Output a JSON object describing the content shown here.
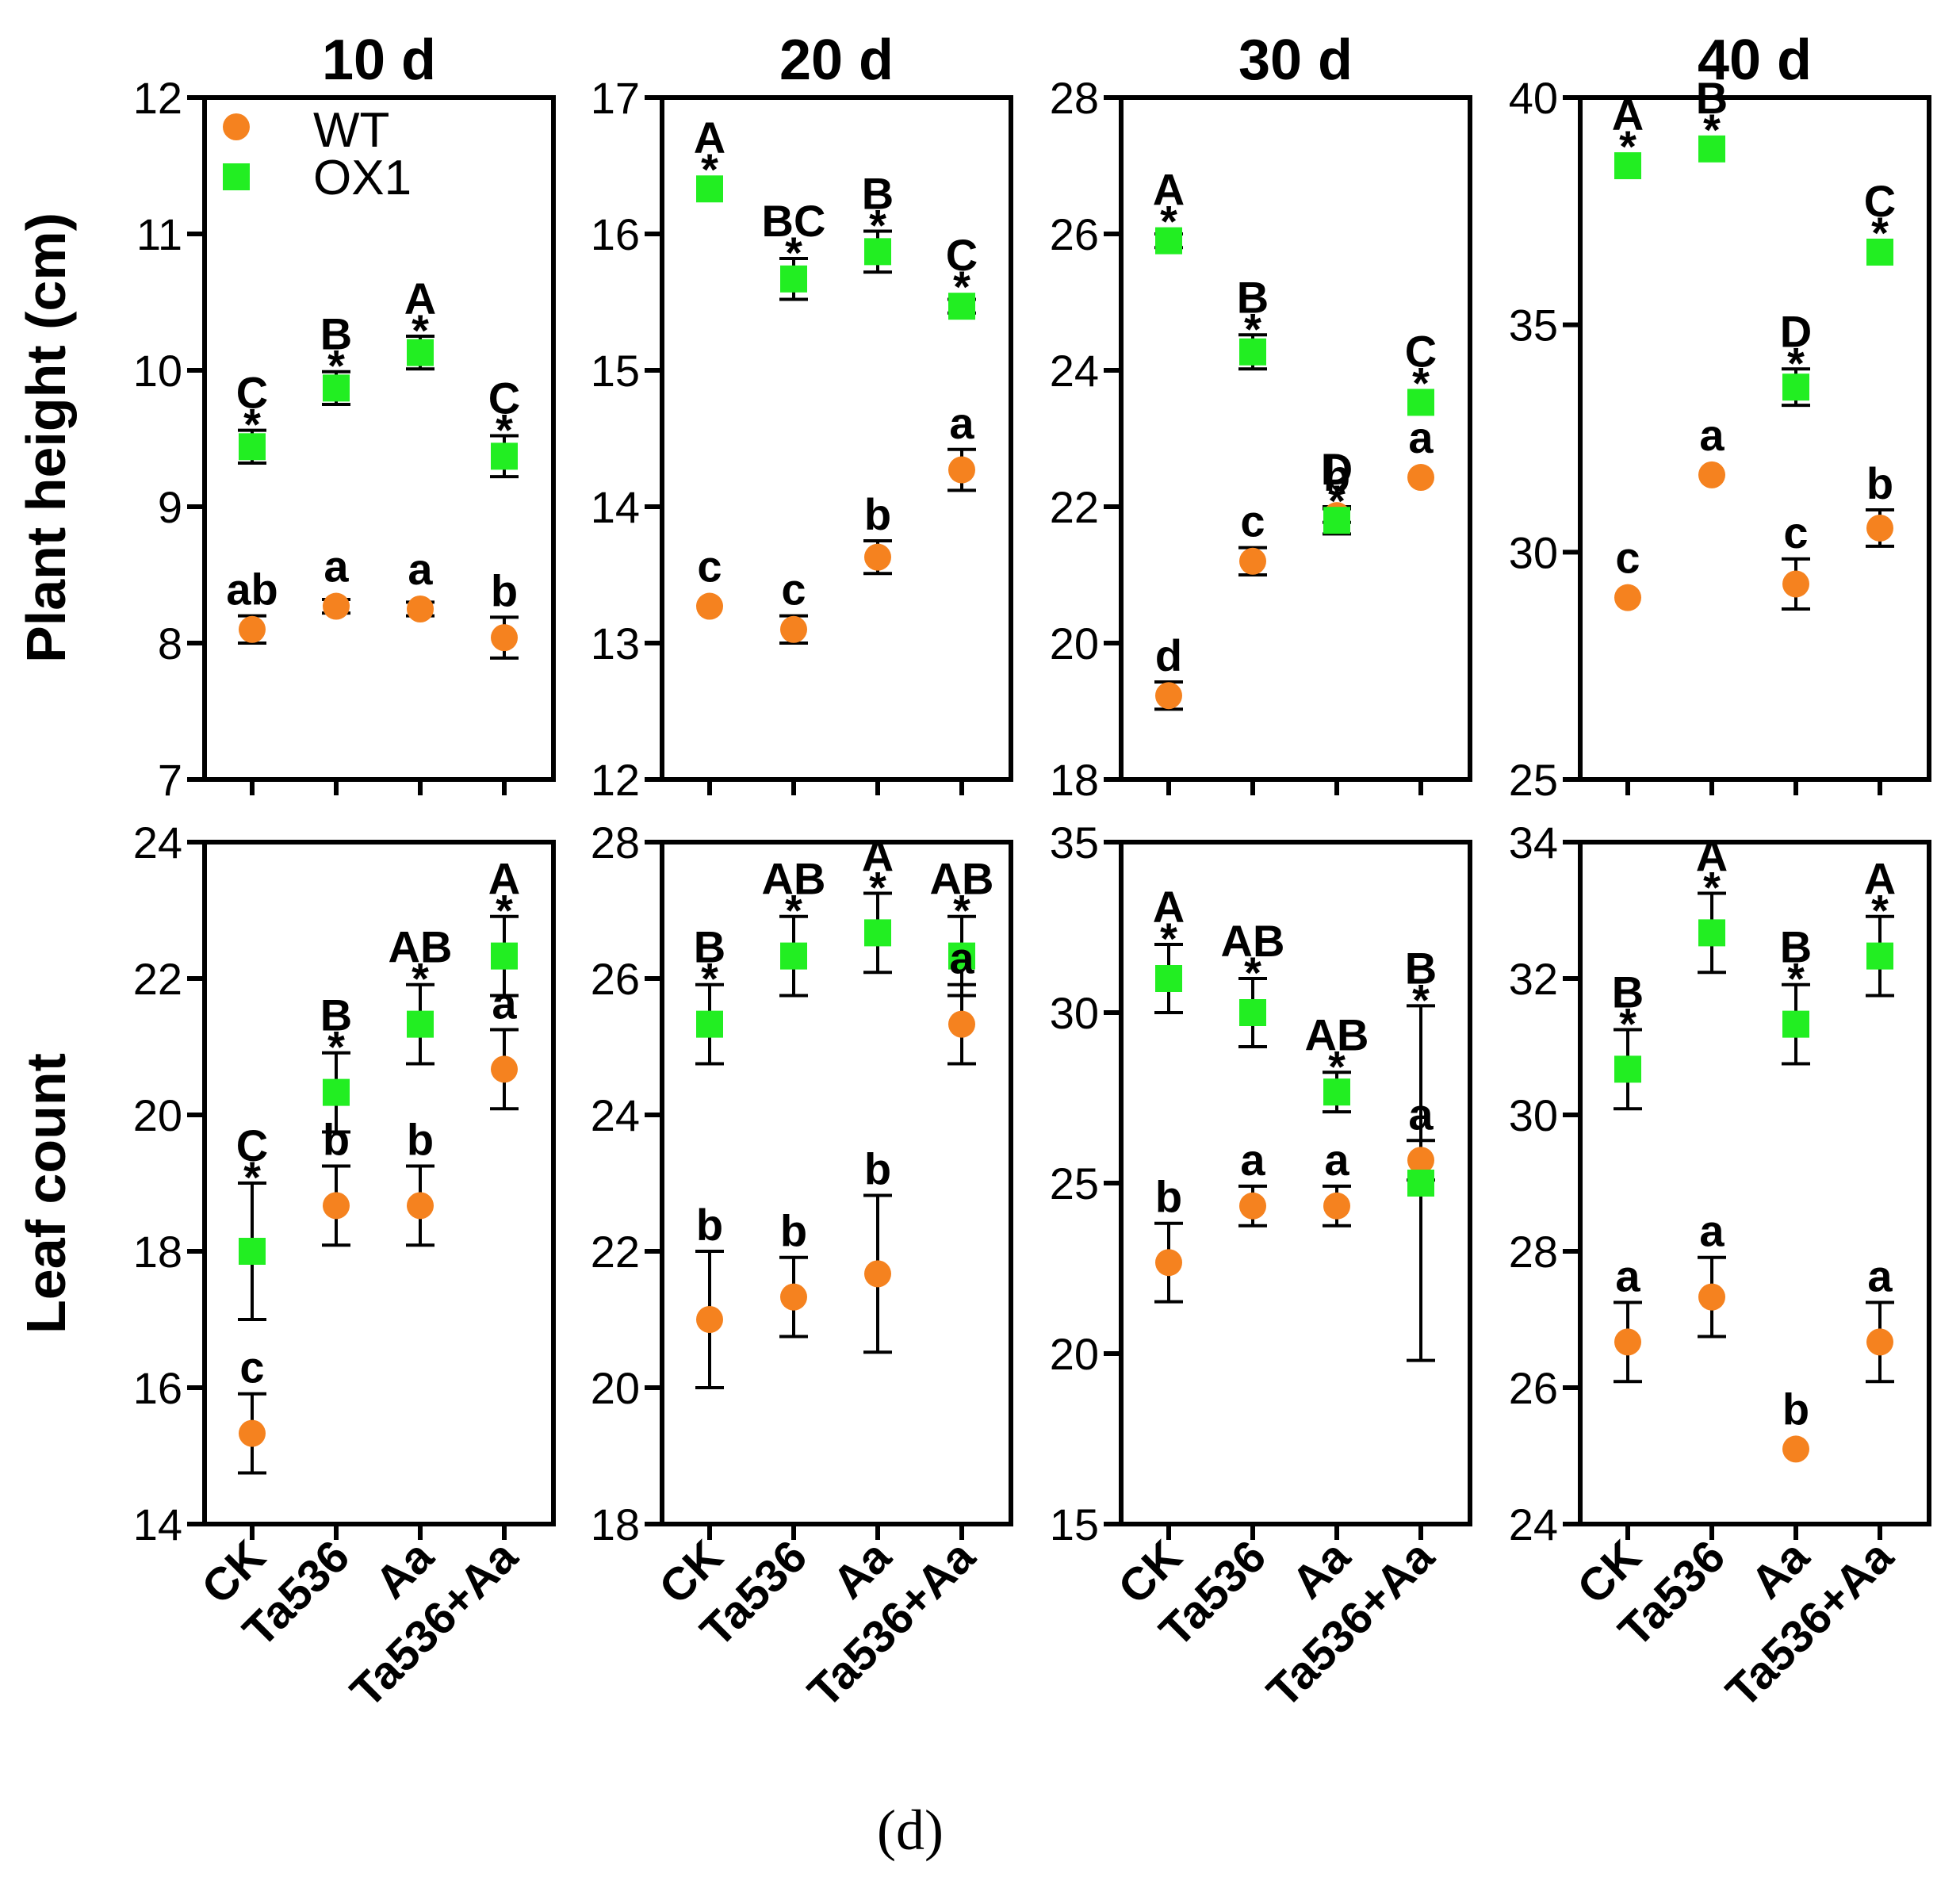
{
  "figure": {
    "caption": "(d)",
    "colors": {
      "wt": "#f5821f",
      "ox1": "#22ee22",
      "axis": "#000000",
      "text": "#000000"
    },
    "legend": [
      {
        "name": "WT",
        "marker": "circle",
        "color": "#f5821f"
      },
      {
        "name": "OX1",
        "marker": "square",
        "color": "#22ee22"
      }
    ],
    "row_ylabels": [
      "Plant height (cm)",
      "Leaf count"
    ],
    "x_categories": [
      "CK",
      "Ta536",
      "Aa",
      "Ta536+Aa"
    ]
  },
  "chart_data": [
    {
      "type": "scatter",
      "title": "10 d",
      "ylabel": "Plant height (cm)",
      "xlabel": "",
      "categories": [
        "CK",
        "Ta536",
        "Aa",
        "Ta536+Aa"
      ],
      "ylim": [
        7,
        12
      ],
      "yticks": [
        7,
        8,
        9,
        10,
        11,
        12
      ],
      "show_xticklabels": false,
      "series": [
        {
          "name": "WT",
          "values": [
            8.1,
            8.27,
            8.25,
            8.04
          ],
          "err": [
            0.1,
            0.05,
            0.05,
            0.15
          ],
          "letters": [
            "ab",
            "a",
            "a",
            "b"
          ]
        },
        {
          "name": "OX1",
          "values": [
            9.44,
            9.87,
            10.13,
            9.37
          ],
          "err": [
            0.12,
            0.12,
            0.12,
            0.15
          ],
          "letters": [
            "C",
            "B",
            "A",
            "C"
          ],
          "stars": [
            "*",
            "*",
            "*",
            "*"
          ]
        }
      ]
    },
    {
      "type": "scatter",
      "title": "20 d",
      "ylabel": "",
      "xlabel": "",
      "categories": [
        "CK",
        "Ta536",
        "Aa",
        "Ta536+Aa"
      ],
      "ylim": [
        12,
        17
      ],
      "yticks": [
        12,
        13,
        14,
        15,
        16,
        17
      ],
      "show_xticklabels": false,
      "series": [
        {
          "name": "WT",
          "values": [
            13.27,
            13.1,
            13.63,
            14.27
          ],
          "err": [
            0.0,
            0.1,
            0.12,
            0.15
          ],
          "letters": [
            "c",
            "c",
            "b",
            "a"
          ]
        },
        {
          "name": "OX1",
          "values": [
            16.33,
            15.67,
            15.87,
            15.47
          ],
          "err": [
            0.0,
            0.15,
            0.15,
            0.05
          ],
          "letters": [
            "A",
            "BC",
            "B",
            "C"
          ],
          "stars": [
            "*",
            "*",
            "*",
            "*"
          ]
        }
      ]
    },
    {
      "type": "scatter",
      "title": "30 d",
      "ylabel": "",
      "xlabel": "",
      "categories": [
        "CK",
        "Ta536",
        "Aa",
        "Ta536+Aa"
      ],
      "ylim": [
        18,
        28
      ],
      "yticks": [
        18,
        20,
        22,
        24,
        26,
        28
      ],
      "show_xticklabels": false,
      "series": [
        {
          "name": "WT",
          "values": [
            19.23,
            21.2,
            21.87,
            22.43
          ],
          "err": [
            0.2,
            0.2,
            0.1,
            0.0
          ],
          "letters": [
            "d",
            "c",
            "b",
            "a"
          ]
        },
        {
          "name": "OX1",
          "values": [
            25.9,
            24.27,
            21.8,
            23.53
          ],
          "err": [
            0.1,
            0.25,
            0.2,
            0.0
          ],
          "letters": [
            "A",
            "B",
            "D",
            "C"
          ],
          "stars": [
            "*",
            "*",
            "*",
            "*"
          ]
        }
      ]
    },
    {
      "type": "scatter",
      "title": "40 d",
      "ylabel": "",
      "xlabel": "",
      "categories": [
        "CK",
        "Ta536",
        "Aa",
        "Ta536+Aa"
      ],
      "ylim": [
        25,
        40
      ],
      "yticks": [
        25,
        30,
        35,
        40
      ],
      "show_xticklabels": false,
      "series": [
        {
          "name": "WT",
          "values": [
            29.0,
            31.7,
            29.3,
            30.53
          ],
          "err": [
            0.0,
            0.0,
            0.55,
            0.4
          ],
          "letters": [
            "c",
            "a",
            "c",
            "b"
          ]
        },
        {
          "name": "OX1",
          "values": [
            38.5,
            38.87,
            33.63,
            36.6
          ],
          "err": [
            0.0,
            0.0,
            0.4,
            0.0
          ],
          "letters": [
            "A",
            "B",
            "D",
            "C"
          ],
          "stars": [
            "*",
            "*",
            "*",
            "*"
          ]
        }
      ]
    },
    {
      "type": "scatter",
      "title": "",
      "ylabel": "Leaf count",
      "xlabel": "",
      "categories": [
        "CK",
        "Ta536",
        "Aa",
        "Ta536+Aa"
      ],
      "ylim": [
        14,
        24
      ],
      "yticks": [
        14,
        16,
        18,
        20,
        22,
        24
      ],
      "show_xticklabels": true,
      "series": [
        {
          "name": "WT",
          "values": [
            15.33,
            18.67,
            18.67,
            20.67
          ],
          "err": [
            0.58,
            0.58,
            0.58,
            0.58
          ],
          "letters": [
            "c",
            "b",
            "b",
            "a"
          ]
        },
        {
          "name": "OX1",
          "values": [
            18.0,
            20.33,
            21.33,
            22.33
          ],
          "err": [
            1.0,
            0.58,
            0.58,
            0.58
          ],
          "letters": [
            "C",
            "B",
            "AB",
            "A"
          ],
          "stars": [
            "*",
            "*",
            "*",
            "*"
          ]
        }
      ]
    },
    {
      "type": "scatter",
      "title": "",
      "ylabel": "",
      "xlabel": "",
      "categories": [
        "CK",
        "Ta536",
        "Aa",
        "Ta536+Aa"
      ],
      "ylim": [
        18,
        28
      ],
      "yticks": [
        18,
        20,
        22,
        24,
        26,
        28
      ],
      "show_xticklabels": true,
      "series": [
        {
          "name": "WT",
          "values": [
            21.0,
            21.33,
            21.67,
            25.33
          ],
          "err": [
            1.0,
            0.58,
            1.15,
            0.58
          ],
          "letters": [
            "b",
            "b",
            "b",
            "a"
          ]
        },
        {
          "name": "OX1",
          "values": [
            25.33,
            26.33,
            26.67,
            26.33
          ],
          "err": [
            0.58,
            0.58,
            0.58,
            0.58
          ],
          "letters": [
            "B",
            "AB",
            "A",
            "AB"
          ],
          "stars": [
            "*",
            "*",
            "*",
            "*"
          ]
        }
      ]
    },
    {
      "type": "scatter",
      "title": "",
      "ylabel": "",
      "xlabel": "",
      "categories": [
        "CK",
        "Ta536",
        "Aa",
        "Ta536+Aa"
      ],
      "ylim": [
        15,
        35
      ],
      "yticks": [
        15,
        20,
        25,
        30,
        35
      ],
      "show_xticklabels": true,
      "series": [
        {
          "name": "WT",
          "values": [
            22.67,
            24.33,
            24.33,
            25.67
          ],
          "err": [
            1.15,
            0.58,
            0.58,
            0.58
          ],
          "letters": [
            "b",
            "a",
            "a",
            "a"
          ]
        },
        {
          "name": "OX1",
          "values": [
            31.0,
            30.0,
            27.67,
            25.0
          ],
          "err": [
            1.0,
            1.0,
            0.58,
            5.2
          ],
          "letters": [
            "A",
            "AB",
            "AB",
            "B"
          ],
          "stars": [
            "*",
            "*",
            "*",
            "*"
          ]
        }
      ]
    },
    {
      "type": "scatter",
      "title": "",
      "ylabel": "",
      "xlabel": "",
      "categories": [
        "CK",
        "Ta536",
        "Aa",
        "Ta536+Aa"
      ],
      "ylim": [
        24,
        34
      ],
      "yticks": [
        24,
        26,
        28,
        30,
        32,
        34
      ],
      "show_xticklabels": true,
      "series": [
        {
          "name": "WT",
          "values": [
            26.67,
            27.33,
            25.1,
            26.67
          ],
          "err": [
            0.58,
            0.58,
            0.0,
            0.58
          ],
          "letters": [
            "a",
            "a",
            "b",
            "a"
          ]
        },
        {
          "name": "OX1",
          "values": [
            30.67,
            32.67,
            31.33,
            32.33
          ],
          "err": [
            0.58,
            0.58,
            0.58,
            0.58
          ],
          "letters": [
            "B",
            "A",
            "B",
            "A"
          ],
          "stars": [
            "*",
            "*",
            "*",
            "*"
          ]
        }
      ]
    }
  ]
}
